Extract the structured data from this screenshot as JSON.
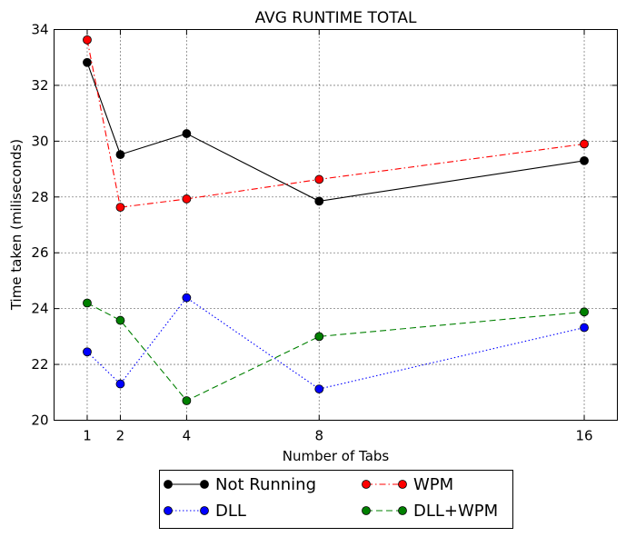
{
  "chart_data": {
    "type": "line",
    "title": "AVG RUNTIME TOTAL",
    "xlabel": "Number of Tabs",
    "ylabel": "Time taken (miliseconds)",
    "x": [
      1,
      2,
      4,
      8,
      16
    ],
    "xticks": [
      1,
      2,
      4,
      8,
      16
    ],
    "xlim": [
      0,
      17
    ],
    "ylim": [
      20,
      34
    ],
    "yticks": [
      20,
      22,
      24,
      26,
      28,
      30,
      32,
      34
    ],
    "grid": true,
    "legend_position": "bottom-center",
    "series": [
      {
        "name": "Not Running",
        "color": "#000000",
        "linestyle": "solid",
        "values": [
          32.82,
          29.52,
          30.27,
          27.85,
          29.3
        ]
      },
      {
        "name": "WPM",
        "color": "#ff0000",
        "linestyle": "dashdot",
        "values": [
          33.63,
          27.63,
          27.93,
          28.63,
          29.9
        ]
      },
      {
        "name": "DLL",
        "color": "#0000ff",
        "linestyle": "dotted",
        "values": [
          22.45,
          21.3,
          24.39,
          21.12,
          23.32
        ]
      },
      {
        "name": "DLL+WPM",
        "color": "#008000",
        "linestyle": "dashed",
        "values": [
          24.2,
          23.58,
          20.7,
          23.0,
          23.88
        ]
      }
    ],
    "legend_order": [
      "Not Running",
      "WPM",
      "DLL",
      "DLL+WPM"
    ]
  }
}
